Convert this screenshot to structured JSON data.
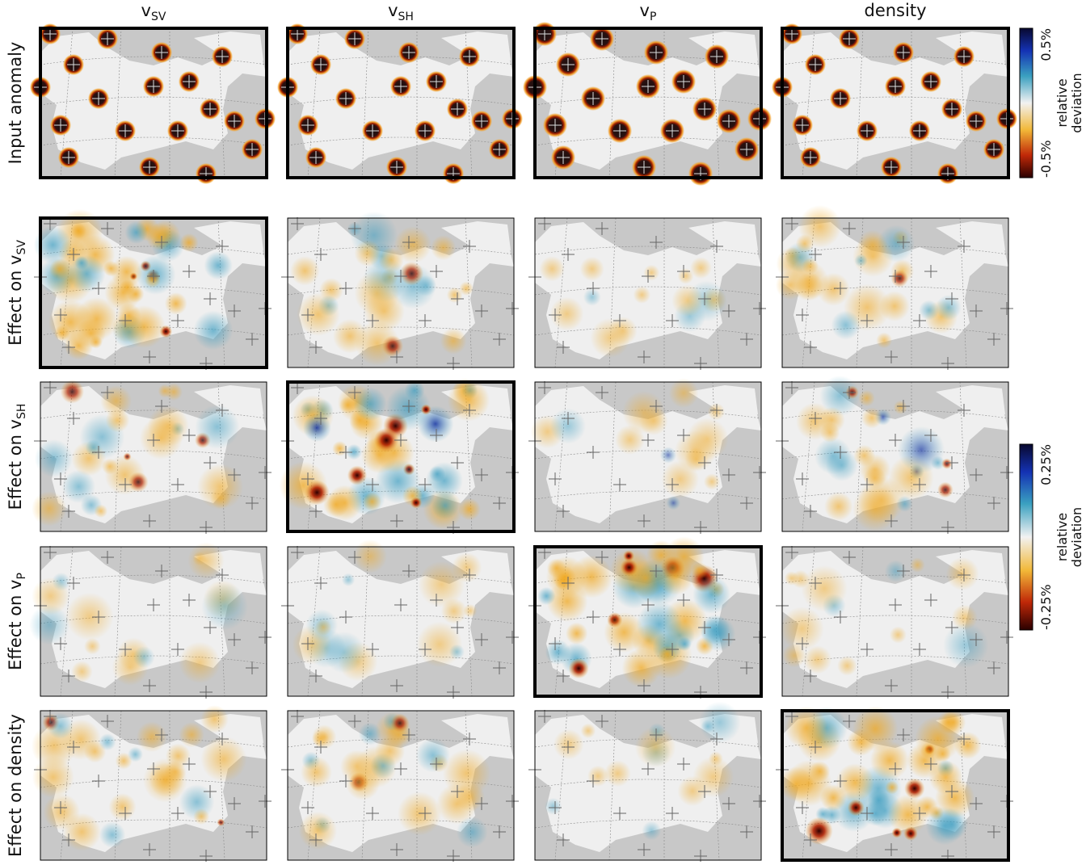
{
  "columns": [
    {
      "main": "v",
      "sub": "SV"
    },
    {
      "main": "v",
      "sub": "SH"
    },
    {
      "main": "v",
      "sub": "P"
    },
    {
      "main": "density"
    }
  ],
  "rows": [
    {
      "main": "Input anomaly"
    },
    {
      "main": "Effect on v",
      "sub": "SV"
    },
    {
      "main": "Effect on v",
      "sub": "SH"
    },
    {
      "main": "Effect on v",
      "sub": "P"
    },
    {
      "main": "Effect on density"
    }
  ],
  "colorbars": [
    {
      "max": "0.5%",
      "min": "-0.5%",
      "label": [
        "relative",
        "deviation"
      ]
    },
    {
      "max": "0.25%",
      "min": "-0.25%",
      "label": [
        "relative",
        "deviation"
      ]
    }
  ]
}
